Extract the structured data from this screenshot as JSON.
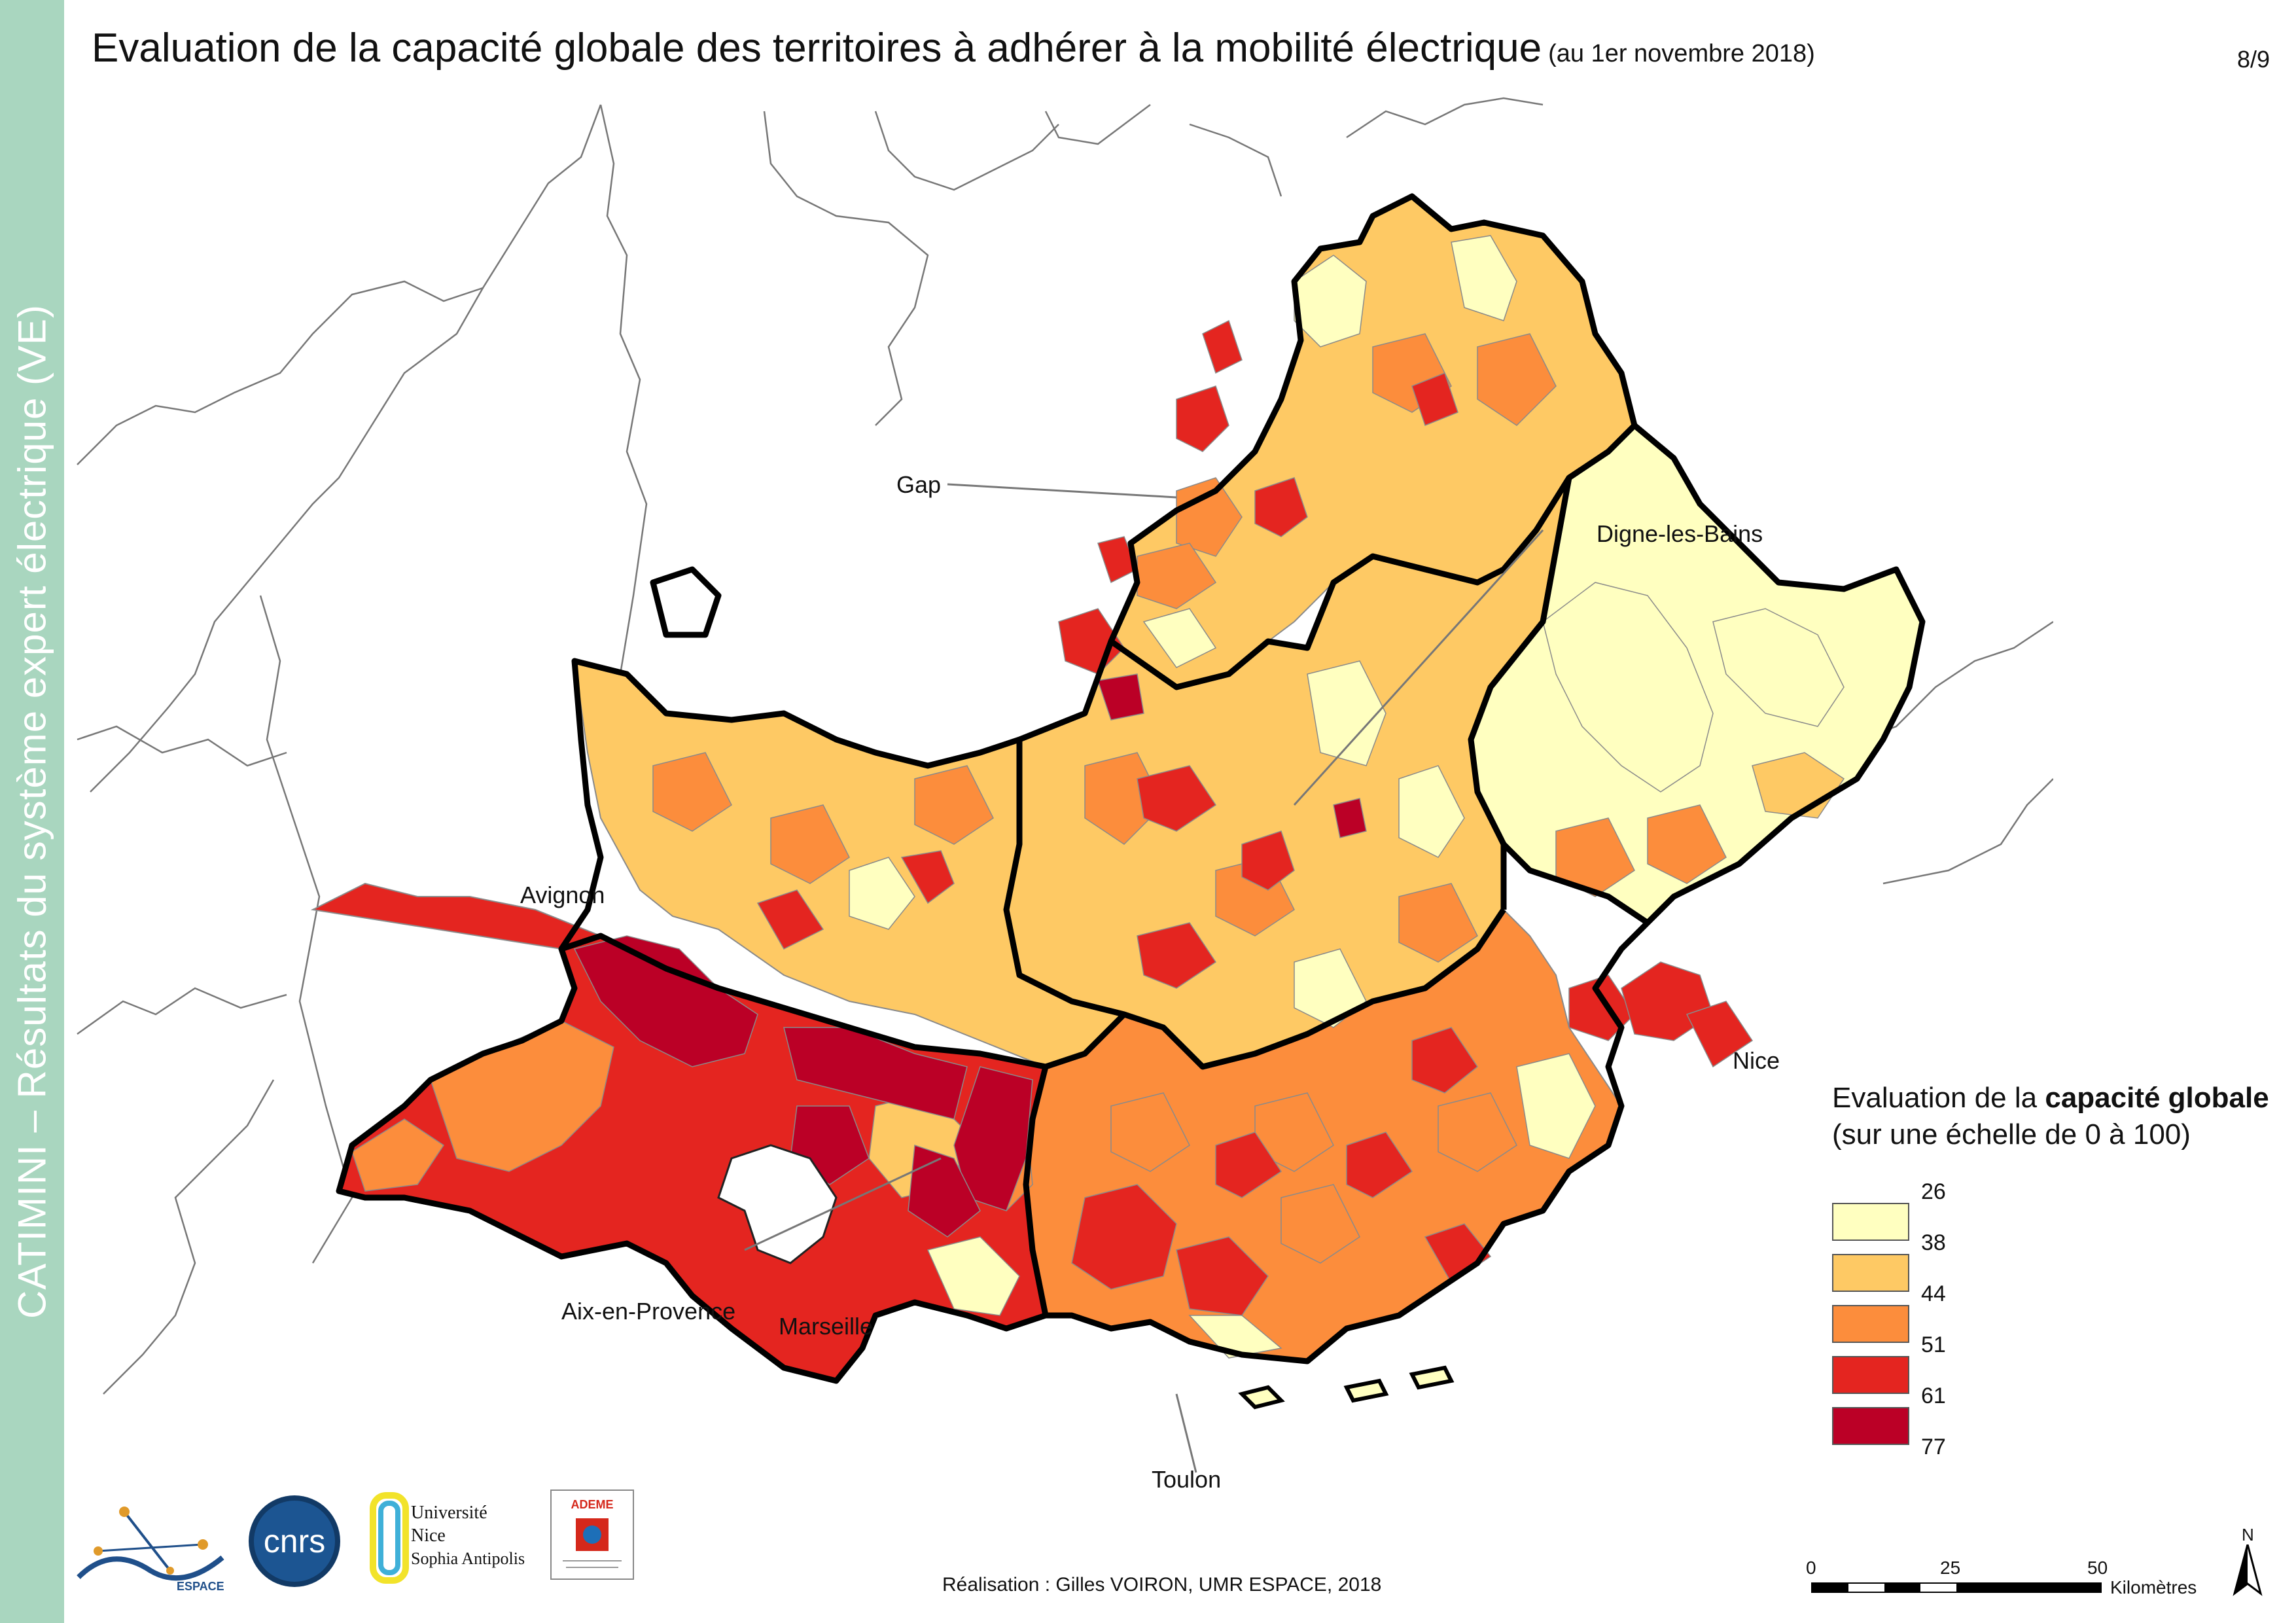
{
  "title": "Evaluation de la capacité globale des territoires à adhérer à la mobilité électrique",
  "title_sub": "(au 1er novembre 2018)",
  "page_number": "8/9",
  "sidebar_text": "CATIMINI – Résultats du système expert électrique (VE)",
  "cities": {
    "gap": "Gap",
    "digne": "Digne-les-Bains",
    "avignon": "Avignon",
    "nice": "Nice",
    "aix": "Aix-en-Provence",
    "marseille": "Marseille",
    "toulon": "Toulon"
  },
  "legend": {
    "title_prefix": "Evaluation de la ",
    "title_bold": "capacité globale",
    "subtitle": "(sur une échelle de 0 à 100)",
    "breaks": [
      "26",
      "38",
      "44",
      "51",
      "61",
      "77"
    ],
    "colors": [
      "#ffffc0",
      "#fec964",
      "#fc8d3c",
      "#e42520",
      "#bb0026"
    ]
  },
  "credit": "Réalisation : Gilles VOIRON, UMR ESPACE, 2018",
  "scale": {
    "ticks": [
      "0",
      "25",
      "50"
    ],
    "unit": "Kilomètres"
  },
  "north_label": "N",
  "logos": {
    "espace": "ESPACE",
    "cnrs": "cnrs",
    "unice_1": "Université",
    "unice_2": "Nice",
    "unice_3": "Sophia Antipolis",
    "ademe": "ADEME"
  }
}
